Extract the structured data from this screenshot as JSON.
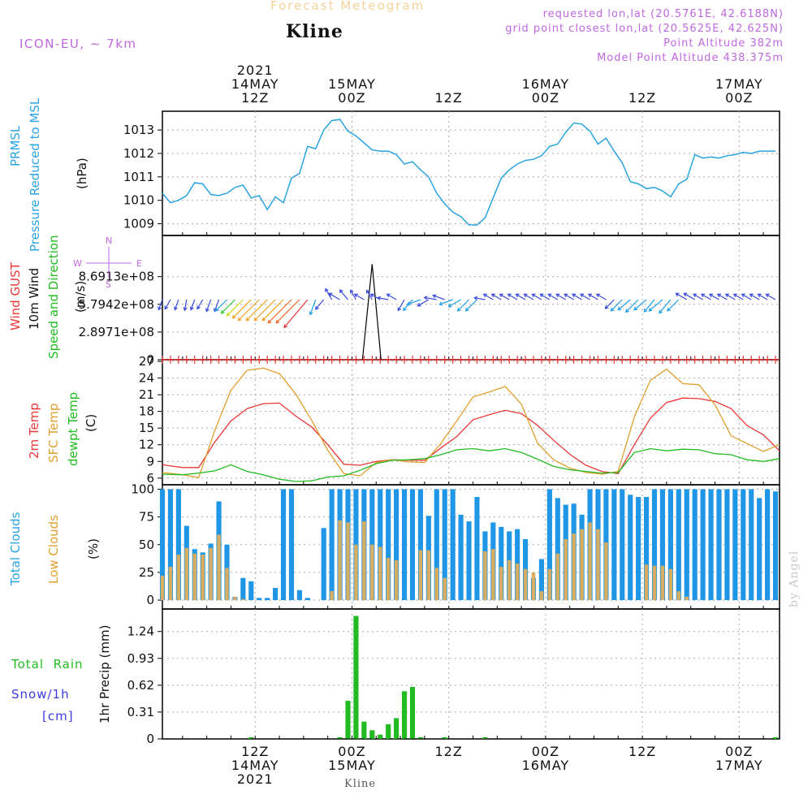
{
  "header": {
    "title": "Forecast Meteogram",
    "location": "Kline",
    "model": "ICON-EU, ~ 7km",
    "requested": "requested lon,lat (20.5761E, 42.6188N)",
    "gridpoint": "grid point closest lon,lat (20.5625E, 42.625N)",
    "altitude": "Point Altitude 382m",
    "model_altitude": "Model Point Altitude 438.375m"
  },
  "time_axis": {
    "top": [
      {
        "year": "2021",
        "date": "14MAY",
        "hour": "12Z",
        "h": 12
      },
      {
        "year": "",
        "date": "15MAY",
        "hour": "00Z",
        "h": 24
      },
      {
        "year": "",
        "date": "",
        "hour": "12Z",
        "h": 36
      },
      {
        "year": "",
        "date": "16MAY",
        "hour": "00Z",
        "h": 48
      },
      {
        "year": "",
        "date": "",
        "hour": "12Z",
        "h": 60
      },
      {
        "year": "",
        "date": "17MAY",
        "hour": "00Z",
        "h": 72
      }
    ],
    "bottom": [
      {
        "hour": "12Z",
        "date": "14MAY",
        "year": "2021",
        "h": 12
      },
      {
        "hour": "00Z",
        "date": "15MAY",
        "year": "",
        "h": 24
      },
      {
        "hour": "12Z",
        "date": "",
        "year": "",
        "h": 36
      },
      {
        "hour": "00Z",
        "date": "16MAY",
        "year": "",
        "h": 48
      },
      {
        "hour": "12Z",
        "date": "",
        "year": "",
        "h": 60
      },
      {
        "hour": "00Z",
        "date": "17MAY",
        "year": "",
        "h": 72
      }
    ],
    "hours_range": [
      0.5,
      77
    ]
  },
  "footer": "Kline",
  "credit": "by Angel",
  "labels": {
    "p1": [
      {
        "text": "PRMSL",
        "color": "#2aa3e0"
      },
      {
        "text": "Pressure Reduced to MSL",
        "color": "#2aa3e0"
      },
      {
        "text": "(hPa)",
        "color": "#111111"
      }
    ],
    "p2": [
      {
        "text": "Wind GUST",
        "color": "#e83838"
      },
      {
        "text": "10m Wind",
        "color": "#111111"
      },
      {
        "text": "Speed and Direction",
        "color": "#22bb22"
      },
      {
        "text": "(m/s)",
        "color": "#111111"
      }
    ],
    "p3": [
      {
        "text": "2m Temp",
        "color": "#e83838"
      },
      {
        "text": "SFC Temp",
        "color": "#e0a030"
      },
      {
        "text": "dewpt Temp",
        "color": "#22bb22"
      },
      {
        "text": "(C)",
        "color": "#111111"
      }
    ],
    "p4": [
      {
        "text": "Total Clouds",
        "color": "#2aa3e0"
      },
      {
        "text": "Low Clouds",
        "color": "#e0a030"
      },
      {
        "text": "(%)",
        "color": "#111111"
      }
    ],
    "p5": [
      {
        "text": "1hr Precip (mm)",
        "color": "#111111"
      }
    ],
    "p5_legend": [
      {
        "text": "Total  Rain",
        "color": "#22bb22"
      },
      {
        "text": "Snow/1h",
        "color": "#3a3ae0"
      },
      {
        "text": "[cm]",
        "color": "#3a3ae0"
      }
    ],
    "compass": {
      "n": "N",
      "w": "W",
      "e": "E",
      "s": "S"
    }
  },
  "chart_data": [
    {
      "type": "line",
      "title": "PRMSL",
      "ylabel": "(hPa)",
      "ylim": [
        1008.5,
        1013.8
      ],
      "yticks": [
        1009,
        1010,
        1011,
        1012,
        1013
      ],
      "grid": true,
      "color": "#2aa3e0",
      "x": [
        0.5,
        1.5,
        2.5,
        3.5,
        4.5,
        5.5,
        6.5,
        7.5,
        8.5,
        9.5,
        10.5,
        11.5,
        12.5,
        13.5,
        14.5,
        15.5,
        16.5,
        17.5,
        18.5,
        19.5,
        20.5,
        21.5,
        22.5,
        23.5,
        24.5,
        25.5,
        26.5,
        27.5,
        28.5,
        29.5,
        30.5,
        31.5,
        32.5,
        33.5,
        34.5,
        35.5,
        36.5,
        37.5,
        38.5,
        39.5,
        40.5,
        41.5,
        42.5,
        43.5,
        44.5,
        45.5,
        46.5,
        47.5,
        48.5,
        49.5,
        50.5,
        51.5,
        52.5,
        53.5,
        54.5,
        55.5,
        56.5,
        57.5,
        58.5,
        59.5,
        60.5,
        61.5,
        62.5,
        63.5,
        64.5,
        65.5,
        66.5,
        67.5,
        68.5,
        69.5,
        70.5,
        71.5,
        72.5,
        73.5,
        74.5,
        75.5,
        76.5
      ],
      "values": [
        1010.3,
        1009.9,
        1010,
        1010.2,
        1010.75,
        1010.7,
        1010.25,
        1010.2,
        1010.3,
        1010.55,
        1010.65,
        1010.1,
        1010.2,
        1009.6,
        1010.15,
        1009.9,
        1010.95,
        1011.15,
        1012.3,
        1012.2,
        1013.0,
        1013.4,
        1013.45,
        1012.95,
        1012.75,
        1012.45,
        1012.15,
        1012.1,
        1012.1,
        1011.95,
        1011.55,
        1011.65,
        1011.3,
        1011.0,
        1010.3,
        1009.85,
        1009.5,
        1009.3,
        1008.95,
        1008.95,
        1009.25,
        1010.1,
        1010.95,
        1011.3,
        1011.55,
        1011.7,
        1011.75,
        1011.9,
        1012.3,
        1012.4,
        1012.9,
        1013.3,
        1013.25,
        1012.95,
        1012.4,
        1012.65,
        1012.1,
        1011.6,
        1010.8,
        1010.7,
        1010.5,
        1010.55,
        1010.4,
        1010.15,
        1010.7,
        1010.9,
        1011.95,
        1011.8,
        1011.85,
        1011.8,
        1011.9,
        1011.95,
        1012.05,
        1012.0,
        1012.1,
        1012.1,
        1012.1
      ]
    },
    {
      "type": "line",
      "title": "Wind GUST / 10m Wind Speed and Direction",
      "ylabel": "(m/s)",
      "ylim": [
        0,
        1300000000.0
      ],
      "yticks": [
        0,
        289710000,
        579420000,
        869130000
      ],
      "ytick_labels": [
        "0",
        "2.8971e+08",
        "5.7942e+08",
        "8.6913e+08"
      ],
      "grid": true,
      "gust_series": {
        "name": "Wind GUST",
        "color": "#e83838",
        "x": [
          0.5,
          77
        ],
        "values": [
          0,
          0
        ]
      },
      "spike": {
        "x": [
          25.3,
          26.5,
          27.6
        ],
        "values": [
          0,
          1000000000.0,
          0
        ]
      },
      "wind": {
        "x": [
          0.5,
          1.5,
          2.5,
          3.5,
          4.5,
          5.5,
          6.5,
          7.5,
          8.5,
          9.5,
          10.5,
          11.5,
          12.5,
          13.5,
          14.5,
          15.5,
          16.5,
          17.5,
          18.5,
          19.5,
          20.5,
          21.5,
          22.5,
          23.5,
          24.5,
          25.5,
          26.5,
          27.5,
          28.5,
          29.5,
          30.5,
          31.5,
          32.5,
          33.5,
          34.5,
          35.5,
          36.5,
          37.5,
          38.5,
          39.5,
          40.5,
          41.5,
          42.5,
          43.5,
          44.5,
          45.5,
          46.5,
          47.5,
          48.5,
          49.5,
          50.5,
          51.5,
          52.5,
          53.5,
          54.5,
          55.5,
          56.5,
          57.5,
          58.5,
          59.5,
          60.5,
          61.5,
          62.5,
          63.5,
          64.5,
          65.5,
          66.5,
          67.5,
          68.5,
          69.5,
          70.5,
          71.5,
          72.5,
          73.5,
          74.5,
          75.5,
          76.5
        ],
        "speed": [
          1.5,
          1.5,
          1.5,
          1.5,
          1.5,
          1.5,
          2,
          2,
          3,
          4,
          5,
          6,
          7,
          7,
          7,
          7,
          8,
          8,
          9,
          3,
          2,
          2,
          2,
          2,
          1.5,
          1.5,
          1.5,
          1.5,
          1.5,
          1.5,
          2,
          2.5,
          2.5,
          2,
          2,
          2,
          2.5,
          2.5,
          3,
          3,
          1.5,
          1.5,
          1.5,
          1.5,
          1.5,
          1.5,
          1.5,
          1.5,
          1.5,
          1.5,
          1.5,
          1.5,
          1.5,
          1.5,
          1.5,
          1.5,
          2,
          3,
          3,
          3.5,
          3,
          3,
          3.5,
          3.5,
          3,
          2,
          2,
          1.5,
          1.5,
          1.5,
          1.5,
          1.5,
          1.5,
          1.5,
          1.5,
          1.5,
          1.5
        ],
        "dir": [
          200,
          210,
          200,
          190,
          200,
          210,
          200,
          200,
          225,
          225,
          225,
          225,
          225,
          225,
          225,
          225,
          225,
          225,
          220,
          200,
          220,
          330,
          300,
          320,
          330,
          300,
          330,
          300,
          280,
          300,
          210,
          220,
          250,
          240,
          280,
          290,
          250,
          240,
          225,
          225,
          280,
          300,
          300,
          300,
          300,
          300,
          300,
          300,
          300,
          300,
          300,
          300,
          300,
          300,
          300,
          300,
          225,
          225,
          230,
          225,
          230,
          220,
          230,
          220,
          225,
          300,
          300,
          300,
          300,
          300,
          300,
          300,
          300,
          300,
          300,
          300,
          300
        ]
      }
    },
    {
      "type": "line",
      "title": "Temperatures",
      "ylabel": "(C)",
      "ylim": [
        4.8,
        27.3
      ],
      "yticks": [
        6,
        9,
        12,
        15,
        18,
        21,
        24,
        27
      ],
      "grid": true,
      "x": [
        0.5,
        3,
        5,
        7,
        9,
        11,
        13,
        15,
        17,
        19,
        21,
        23,
        25,
        27,
        29,
        31,
        33,
        35,
        37,
        39,
        41,
        43,
        45,
        47,
        49,
        51,
        53,
        55,
        57,
        59,
        61,
        63,
        65,
        67,
        69,
        71,
        73,
        75,
        77
      ],
      "series": [
        {
          "name": "2m Temp",
          "color": "#e83838",
          "values": [
            8.4,
            7.9,
            7.9,
            12.5,
            16.3,
            18.5,
            19.4,
            19.5,
            17.2,
            15.2,
            12,
            8.5,
            8.3,
            9,
            9.3,
            9.2,
            9.2,
            11.4,
            13.5,
            16.5,
            17.4,
            18.2,
            17.6,
            15.5,
            12.8,
            10.3,
            8.3,
            7.2,
            6.8,
            12,
            16.8,
            19.6,
            20.4,
            20.3,
            19.8,
            18.5,
            15.4,
            13.8,
            10.9
          ]
        },
        {
          "name": "SFC Temp",
          "color": "#e0a030",
          "values": [
            7,
            6.6,
            6.1,
            14.6,
            21.8,
            25.4,
            25.8,
            24.8,
            21.2,
            16.4,
            11,
            6.8,
            6.4,
            8.8,
            9.3,
            8.9,
            8.8,
            12.2,
            16.3,
            20.6,
            21.5,
            22.5,
            19.3,
            12.3,
            9.3,
            7.8,
            7,
            6.7,
            7.2,
            17,
            23.6,
            25.6,
            23,
            22.8,
            19.2,
            13.6,
            12.2,
            10.8,
            12
          ]
        },
        {
          "name": "dewpt Temp",
          "color": "#22bb22",
          "values": [
            6.7,
            6.6,
            6.9,
            7.3,
            8.4,
            7.2,
            6.6,
            5.8,
            5.4,
            5.5,
            6.2,
            6.4,
            7.4,
            8.6,
            9.2,
            9.3,
            9.5,
            10.2,
            11.1,
            11.3,
            10.9,
            11.3,
            10.6,
            9.4,
            8.1,
            7.5,
            7.2,
            6.9,
            7,
            10.6,
            11.3,
            10.9,
            11.2,
            11.1,
            10.4,
            10.2,
            9.3,
            9,
            9.5
          ]
        }
      ]
    },
    {
      "type": "bar",
      "title": "Clouds",
      "ylabel": "(%)",
      "ylim": [
        -8,
        104
      ],
      "yticks": [
        0,
        25,
        50,
        75,
        100
      ],
      "grid": true,
      "x": [
        0.5,
        1.5,
        2.5,
        3.5,
        4.5,
        5.5,
        6.5,
        7.5,
        8.5,
        9.5,
        10.5,
        11.5,
        12.5,
        13.5,
        14.5,
        15.5,
        16.5,
        17.5,
        18.5,
        19.5,
        20.5,
        21.5,
        22.5,
        23.5,
        24.5,
        25.5,
        26.5,
        27.5,
        28.5,
        29.5,
        30.5,
        31.5,
        32.5,
        33.5,
        34.5,
        35.5,
        36.5,
        37.5,
        38.5,
        39.5,
        40.5,
        41.5,
        42.5,
        43.5,
        44.5,
        45.5,
        46.5,
        47.5,
        48.5,
        49.5,
        50.5,
        51.5,
        52.5,
        53.5,
        54.5,
        55.5,
        56.5,
        57.5,
        58.5,
        59.5,
        60.5,
        61.5,
        62.5,
        63.5,
        64.5,
        65.5,
        66.5,
        67.5,
        68.5,
        69.5,
        70.5,
        71.5,
        72.5,
        73.5,
        74.5,
        75.5,
        76.5
      ],
      "series": [
        {
          "name": "Total Clouds",
          "color": "#1f96e6",
          "values": [
            100,
            100,
            100,
            67,
            46,
            43,
            51,
            89,
            50,
            3,
            20,
            17,
            2,
            2,
            11,
            100,
            100,
            9,
            2,
            0,
            65,
            100,
            100,
            100,
            100,
            100,
            100,
            100,
            100,
            100,
            100,
            100,
            100,
            76,
            100,
            100,
            100,
            77,
            71,
            93,
            62,
            70,
            66,
            62,
            64,
            55,
            20,
            37,
            100,
            92,
            86,
            87,
            77,
            100,
            100,
            100,
            100,
            100,
            95,
            93,
            93,
            100,
            100,
            100,
            100,
            100,
            100,
            100,
            100,
            100,
            100,
            100,
            100,
            100,
            92,
            100,
            98
          ]
        },
        {
          "name": "Low Clouds",
          "color": "#d7ad62",
          "values": [
            22,
            30,
            41,
            47,
            42,
            41,
            47,
            59,
            29,
            3,
            1,
            0,
            0,
            0,
            0,
            0,
            0,
            0,
            0,
            0,
            0,
            8,
            72,
            70,
            50,
            71,
            50,
            48,
            38,
            36,
            0,
            0,
            45,
            45,
            29,
            20,
            0,
            0,
            0,
            0,
            44,
            46,
            30,
            36,
            33,
            28,
            25,
            8,
            28,
            42,
            55,
            60,
            64,
            70,
            64,
            52,
            0,
            0,
            0,
            0,
            32,
            31,
            31,
            28,
            8,
            3,
            0,
            0,
            0,
            0,
            0,
            0,
            0,
            0,
            0,
            0,
            0
          ]
        }
      ]
    },
    {
      "type": "bar",
      "title": "1hr Precip",
      "ylabel": "1hr Precip (mm)",
      "ylim": [
        0,
        1.5
      ],
      "yticks": [
        0,
        0.31,
        0.62,
        0.93,
        1.24
      ],
      "grid": true,
      "series": [
        {
          "name": "Total Rain",
          "color": "#22bb22",
          "x": [
            11.5,
            22.5,
            23.5,
            24.5,
            25.5,
            26.5,
            27.5,
            28.5,
            29.5,
            30.5,
            31.5,
            32.5,
            33.5,
            34.5,
            35.5,
            40.5,
            76.5
          ],
          "values": [
            0.02,
            0.02,
            0.44,
            1.42,
            0.2,
            0.1,
            0.05,
            0.17,
            0.24,
            0.55,
            0.6,
            0.02,
            0,
            0,
            0.02,
            0.02,
            0.02
          ]
        }
      ]
    }
  ]
}
